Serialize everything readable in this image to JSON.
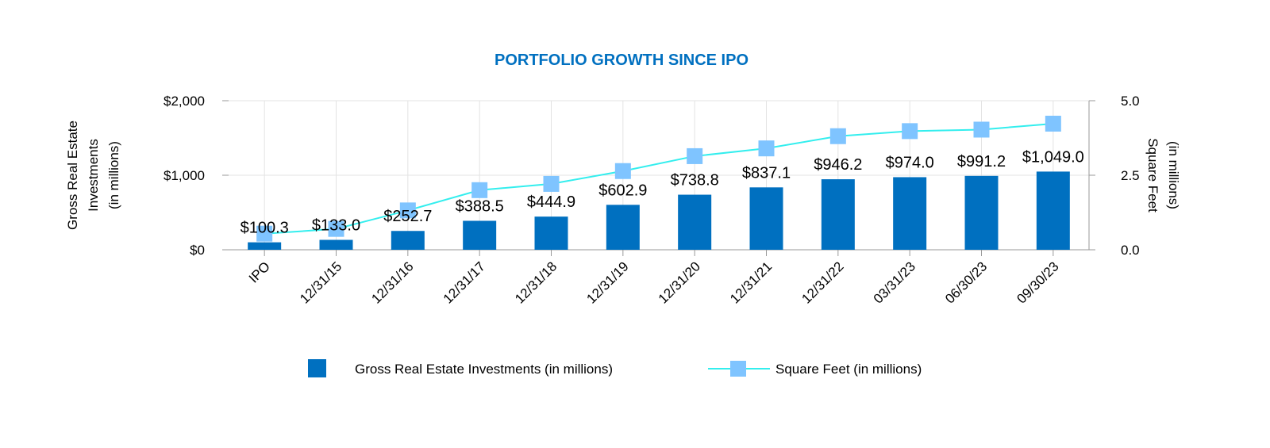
{
  "chart_data": {
    "type": "bar+line",
    "title": "PORTFOLIO GROWTH SINCE IPO",
    "categories": [
      "IPO",
      "12/31/15",
      "12/31/16",
      "12/31/17",
      "12/31/18",
      "12/31/19",
      "12/31/20",
      "12/31/21",
      "12/31/22",
      "03/31/23",
      "06/30/23",
      "09/30/23"
    ],
    "series": [
      {
        "name": "Gross Real Estate Investments (in millions)",
        "type": "bar",
        "axis": "left",
        "color": "#0070C0",
        "values": [
          100.3,
          133.0,
          252.7,
          388.5,
          444.9,
          602.9,
          738.8,
          837.1,
          946.2,
          974.0,
          991.2,
          1049.0
        ],
        "labels": [
          "$100.3",
          "$133.0",
          "$252.7",
          "$388.5",
          "$444.9",
          "$602.9",
          "$738.8",
          "$837.1",
          "$946.2",
          "$974.0",
          "$991.2",
          "$1,049.0"
        ]
      },
      {
        "name": "Square Feet (in millions)",
        "type": "line",
        "axis": "right",
        "color": "#33EEEE",
        "marker_color": "#7FC4FF",
        "values": [
          0.54,
          0.7,
          1.32,
          2.0,
          2.21,
          2.64,
          3.14,
          3.4,
          3.81,
          3.98,
          4.03,
          4.23
        ]
      }
    ],
    "ylabel_left": [
      "Gross Real Estate",
      "Investments",
      "(in millions)"
    ],
    "ylabel_right": [
      "Square Feet",
      "(in millions)"
    ],
    "ylim_left": [
      0,
      2000
    ],
    "ylim_right": [
      0,
      5
    ],
    "yticks_left": [
      "$0",
      "$1,000",
      "$2,000"
    ],
    "yticks_right": [
      "0.0",
      "2.5",
      "5.0"
    ],
    "title_color": "#0070C0",
    "grid": true,
    "legend": "bottom"
  }
}
